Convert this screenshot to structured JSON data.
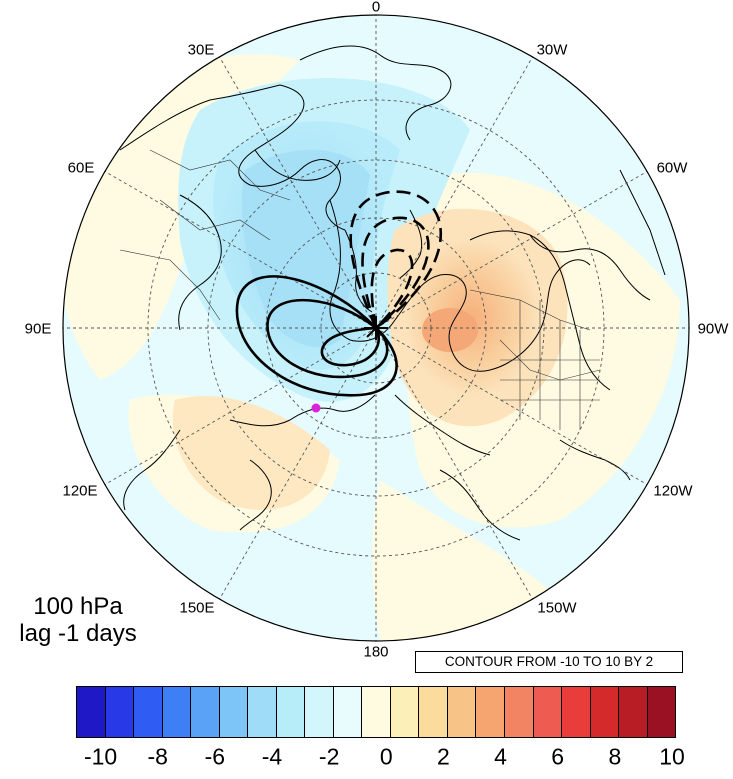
{
  "title_lines": [
    "100 hPa",
    "lag -1 days"
  ],
  "contour_info": "CONTOUR FROM -10 TO 10 BY 2",
  "longitude_labels": [
    "0",
    "30W",
    "60W",
    "90W",
    "120W",
    "150W",
    "180",
    "150E",
    "120E",
    "90E",
    "60E",
    "30E"
  ],
  "colorbar": {
    "labels": [
      "-10",
      "-8",
      "-6",
      "-4",
      "-2",
      "0",
      "2",
      "4",
      "6",
      "8",
      "10"
    ],
    "colors": [
      "#1f18c6",
      "#2839e8",
      "#2f5cf2",
      "#3e7ff5",
      "#5aa2f5",
      "#7dc4f7",
      "#9edcf8",
      "#b7ecf9",
      "#d2f6fb",
      "#e8fcfd",
      "#fefbe0",
      "#fdefb8",
      "#fbdc9c",
      "#f8c386",
      "#f6a470",
      "#f28363",
      "#ee5b51",
      "#e93d3b",
      "#d52a2c",
      "#b81c24",
      "#991122"
    ]
  },
  "map": {
    "projection": "north polar stereographic",
    "field_shading": "anomaly, shaded from -10 to 10",
    "contour_style": "solid = positive, dashed = negative",
    "marker_color": "#dd22dd"
  }
}
